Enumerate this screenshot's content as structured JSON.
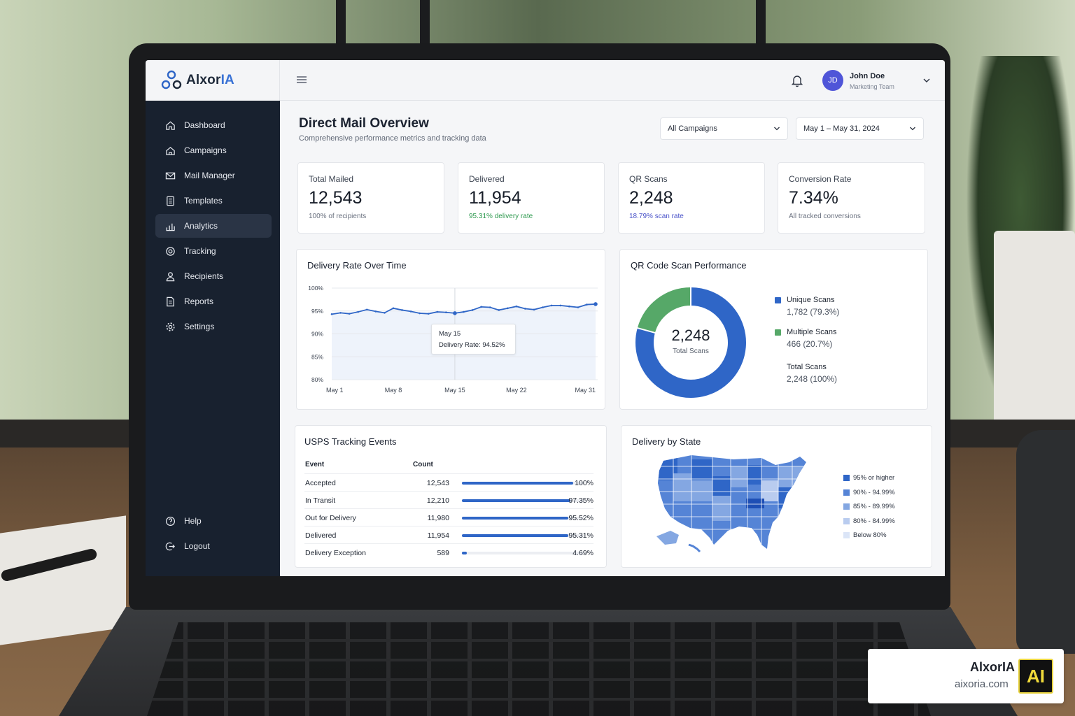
{
  "brand": {
    "name_part1": "Alxor",
    "name_part2": "IA"
  },
  "sidebar": {
    "items": [
      {
        "label": "Dashboard",
        "icon": "home-icon"
      },
      {
        "label": "Campaigns",
        "icon": "campaign-icon"
      },
      {
        "label": "Mail Manager",
        "icon": "mail-icon"
      },
      {
        "label": "Templates",
        "icon": "template-icon"
      },
      {
        "label": "Analytics",
        "icon": "analytics-icon",
        "active": true
      },
      {
        "label": "Tracking",
        "icon": "tracking-icon"
      },
      {
        "label": "Recipients",
        "icon": "user-icon"
      },
      {
        "label": "Reports",
        "icon": "report-icon"
      },
      {
        "label": "Settings",
        "icon": "gear-icon"
      }
    ],
    "bottom": [
      {
        "label": "Help",
        "icon": "help-icon"
      },
      {
        "label": "Logout",
        "icon": "logout-icon"
      }
    ]
  },
  "user": {
    "initials": "JD",
    "name": "John Doe",
    "role": "Marketing Team"
  },
  "header": {
    "title": "Direct Mail Overview",
    "subtitle": "Comprehensive performance metrics and tracking data",
    "campaign_filter": "All Campaigns",
    "date_filter": "May 1 – May 31, 2024"
  },
  "kpis": [
    {
      "label": "Total Mailed",
      "value": "12,543",
      "sub": "100% of recipients",
      "sub_color": "#6b7280"
    },
    {
      "label": "Delivered",
      "value": "11,954",
      "sub": "95.31% delivery rate",
      "sub_color": "#2e9a4f"
    },
    {
      "label": "QR Scans",
      "value": "2,248",
      "sub": "18.79% scan rate",
      "sub_color": "#4a53c9"
    },
    {
      "label": "Conversion Rate",
      "value": "7.34%",
      "sub": "All tracked conversions",
      "sub_color": "#6b7280"
    }
  ],
  "delivery_chart": {
    "title": "Delivery Rate Over Time",
    "tooltip_date": "May 15",
    "tooltip_label": "Delivery Rate:",
    "tooltip_value": "94.52%"
  },
  "chart_data": {
    "type": "line",
    "x_ticks": [
      "May 1",
      "May 8",
      "May 15",
      "May 22",
      "May 31"
    ],
    "y_ticks": [
      "100%",
      "95%",
      "90%",
      "85%",
      "80%"
    ],
    "ylim": [
      80,
      100
    ],
    "x": [
      1,
      2,
      3,
      4,
      5,
      6,
      7,
      8,
      9,
      10,
      11,
      12,
      13,
      14,
      15,
      16,
      17,
      18,
      19,
      20,
      21,
      22,
      23,
      24,
      25,
      26,
      27,
      28,
      29,
      30,
      31
    ],
    "values": [
      94.3,
      94.6,
      94.4,
      94.8,
      95.3,
      94.9,
      94.6,
      95.6,
      95.2,
      94.9,
      94.5,
      94.4,
      94.8,
      94.7,
      94.52,
      94.8,
      95.2,
      95.9,
      95.8,
      95.2,
      95.6,
      96.0,
      95.5,
      95.3,
      95.8,
      96.2,
      96.2,
      96.0,
      95.8,
      96.4,
      96.5
    ],
    "grid": true,
    "color": "#2f66c7"
  },
  "qr": {
    "title": "QR Code Scan Performance",
    "total_value": "2,248",
    "total_label": "Total Scans",
    "segments": [
      {
        "name": "Unique Scans",
        "value": 1782,
        "display": "1,782 (79.3%)",
        "color": "#2f66c7"
      },
      {
        "name": "Multiple Scans",
        "value": 466,
        "display": "466 (20.7%)",
        "color": "#56a868"
      }
    ],
    "total_row": {
      "name": "Total Scans",
      "display": "2,248 (100%)"
    }
  },
  "usps": {
    "title": "USPS Tracking Events",
    "col_event": "Event",
    "col_count": "Count",
    "rows": [
      {
        "event": "Accepted",
        "count": "12,543",
        "pct": "100%",
        "fraction": 1.0
      },
      {
        "event": "In Transit",
        "count": "12,210",
        "pct": "97.35%",
        "fraction": 0.9735
      },
      {
        "event": "Out for Delivery",
        "count": "11,980",
        "pct": "95.52%",
        "fraction": 0.9552
      },
      {
        "event": "Delivered",
        "count": "11,954",
        "pct": "95.31%",
        "fraction": 0.9531
      },
      {
        "event": "Delivery Exception",
        "count": "589",
        "pct": "4.69%",
        "fraction": 0.0469
      }
    ]
  },
  "state_map": {
    "title": "Delivery by State",
    "legend": [
      {
        "label": "95% or higher",
        "color": "#2f66c7"
      },
      {
        "label": "90% - 94.99%",
        "color": "#5584d6"
      },
      {
        "label": "85% - 89.99%",
        "color": "#84a7e2"
      },
      {
        "label": "80% - 84.99%",
        "color": "#b9ccef"
      },
      {
        "label": "Below 80%",
        "color": "#dbe5f7"
      }
    ]
  },
  "watermark": {
    "name": "AlxorIA",
    "url": "aixoria.com",
    "mark": "AI"
  }
}
